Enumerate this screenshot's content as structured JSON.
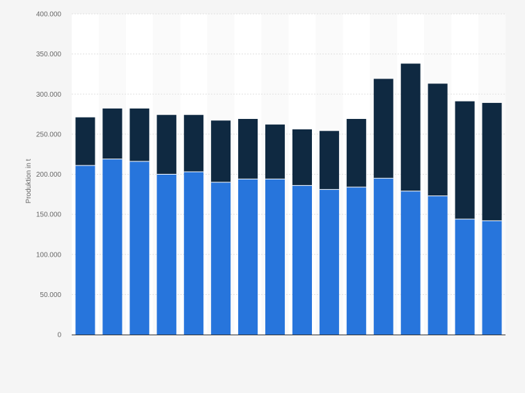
{
  "chart_data": {
    "type": "bar",
    "stacked": true,
    "ylabel": "Produktion in t",
    "xlabel": "",
    "ylim": [
      0,
      400000
    ],
    "yticks": [
      0,
      50000,
      100000,
      150000,
      200000,
      250000,
      300000,
      350000,
      400000
    ],
    "ytick_labels": [
      "0",
      "50.000",
      "100.000",
      "150.000",
      "200.000",
      "250.000",
      "300.000",
      "350.000",
      "400.000"
    ],
    "grid": true,
    "legend": "none",
    "series": [
      {
        "color": "#2775dc",
        "values": [
          211000,
          219000,
          216000,
          200000,
          203000,
          190000,
          194000,
          194000,
          186000,
          181000,
          184000,
          195000,
          179000,
          173000,
          144000,
          142000
        ]
      },
      {
        "color": "#0f2941",
        "values": [
          60000,
          63000,
          66000,
          74000,
          71000,
          77000,
          75000,
          68000,
          70000,
          73000,
          85000,
          124000,
          159000,
          140000,
          147000,
          147000
        ]
      }
    ]
  },
  "colors": {
    "background": "#f5f5f5",
    "plot_background": "#ffffff",
    "band": "#fafafa",
    "grid": "#e0e0e0",
    "axis": "#333333"
  }
}
